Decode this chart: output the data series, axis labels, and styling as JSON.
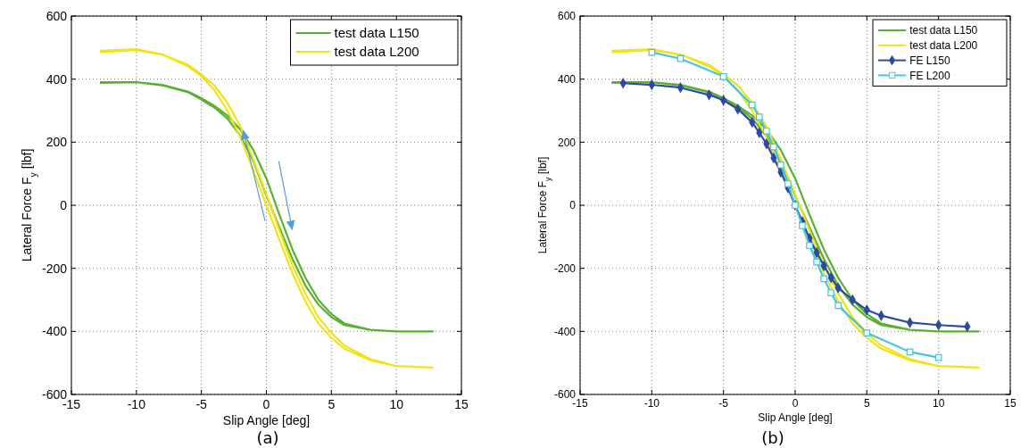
{
  "chart_data": [
    {
      "type": "line",
      "xlabel": "Slip Angle [deg]",
      "ylabel": "Lateral Force F$_{y}$ [lbf]",
      "xlim": [
        -15,
        15
      ],
      "ylim": [
        -600,
        600
      ],
      "xticks": [
        -15,
        -10,
        -5,
        0,
        5,
        10,
        15
      ],
      "yticks": [
        -600,
        -400,
        -200,
        0,
        200,
        400,
        600
      ],
      "grid": true,
      "legend": "top right",
      "annotations": [
        "(a)"
      ],
      "series": [
        {
          "name": "test data L150",
          "color": "#5ab034",
          "x": [
            -12.8,
            -10,
            -8,
            -6,
            -5,
            -4,
            -3,
            -2,
            -1,
            0,
            1,
            2,
            3,
            4,
            5,
            6,
            8,
            10,
            12.8,
            10,
            8,
            6,
            5,
            4,
            3,
            2,
            1,
            0,
            -1,
            -2,
            -3,
            -4,
            -5,
            -6,
            -8,
            -10,
            -12.8
          ],
          "values": [
            390,
            390,
            382,
            360,
            340,
            315,
            285,
            240,
            175,
            85,
            -30,
            -140,
            -230,
            -300,
            -345,
            -375,
            -395,
            -400,
            -400,
            -400,
            -395,
            -380,
            -355,
            -315,
            -255,
            -170,
            -70,
            30,
            140,
            220,
            275,
            310,
            335,
            358,
            380,
            390,
            388
          ]
        },
        {
          "name": "test data L200",
          "color": "#f0e31a",
          "x": [
            -12.8,
            -10,
            -8,
            -6,
            -5,
            -4,
            -3,
            -2,
            -1,
            0,
            1,
            2,
            3,
            4,
            5,
            6,
            8,
            10,
            12.8,
            10,
            8,
            6,
            5,
            4,
            3,
            2,
            1,
            0,
            -1,
            -2,
            -3,
            -4,
            -5,
            -6,
            -8,
            -10,
            -12.8
          ],
          "values": [
            490,
            495,
            478,
            445,
            415,
            380,
            325,
            250,
            145,
            35,
            -80,
            -190,
            -280,
            -355,
            -405,
            -445,
            -488,
            -510,
            -515,
            -510,
            -492,
            -455,
            -420,
            -375,
            -305,
            -215,
            -110,
            0,
            110,
            215,
            300,
            365,
            410,
            440,
            478,
            492,
            486
          ]
        }
      ]
    },
    {
      "type": "line",
      "xlabel": "Slip Angle [deg]",
      "ylabel": "Lateral Force F$_{y}$ [lbf]",
      "xlim": [
        -15,
        15
      ],
      "ylim": [
        -600,
        600
      ],
      "xticks": [
        -15,
        -10,
        -5,
        0,
        5,
        10,
        15
      ],
      "yticks": [
        -600,
        -400,
        -200,
        0,
        200,
        400,
        600
      ],
      "grid": true,
      "legend": "top right",
      "annotations": [
        "(b)"
      ],
      "series": [
        {
          "name": "test data L150",
          "color": "#5ab034",
          "x": [
            -12.8,
            -10,
            -8,
            -6,
            -5,
            -4,
            -3,
            -2,
            -1,
            0,
            1,
            2,
            3,
            4,
            5,
            6,
            8,
            10,
            12.8,
            10,
            8,
            6,
            5,
            4,
            3,
            2,
            1,
            0,
            -1,
            -2,
            -3,
            -4,
            -5,
            -6,
            -8,
            -10,
            -12.8
          ],
          "values": [
            390,
            390,
            382,
            360,
            340,
            315,
            285,
            240,
            175,
            85,
            -30,
            -140,
            -230,
            -300,
            -345,
            -375,
            -395,
            -400,
            -400,
            -400,
            -395,
            -380,
            -355,
            -315,
            -255,
            -170,
            -70,
            30,
            140,
            220,
            275,
            310,
            335,
            358,
            380,
            390,
            388
          ]
        },
        {
          "name": "test data L200",
          "color": "#f0e31a",
          "x": [
            -12.8,
            -10,
            -8,
            -6,
            -5,
            -4,
            -3,
            -2,
            -1,
            0,
            1,
            2,
            3,
            4,
            5,
            6,
            8,
            10,
            12.8,
            10,
            8,
            6,
            5,
            4,
            3,
            2,
            1,
            0,
            -1,
            -2,
            -3,
            -4,
            -5,
            -6,
            -8,
            -10,
            -12.8
          ],
          "values": [
            490,
            495,
            478,
            445,
            415,
            380,
            325,
            250,
            145,
            35,
            -80,
            -190,
            -280,
            -355,
            -405,
            -445,
            -488,
            -510,
            -515,
            -510,
            -492,
            -455,
            -420,
            -375,
            -305,
            -215,
            -110,
            0,
            110,
            215,
            300,
            365,
            410,
            440,
            478,
            492,
            486
          ]
        },
        {
          "name": "FE L150",
          "color": "#2e4aa0",
          "marker": "diamond",
          "x": [
            -12,
            -10,
            -8,
            -6,
            -5,
            -4,
            -3,
            -2.5,
            -2,
            -1.5,
            -1,
            -0.5,
            0,
            0.5,
            1,
            1.5,
            2,
            2.5,
            3,
            4,
            5,
            6,
            8,
            10,
            12
          ],
          "values": [
            387,
            382,
            373,
            350,
            333,
            305,
            263,
            230,
            195,
            150,
            105,
            55,
            0,
            -52,
            -105,
            -150,
            -192,
            -230,
            -262,
            -300,
            -332,
            -350,
            -372,
            -380,
            -385
          ]
        },
        {
          "name": "FE L200",
          "color": "#45c3df",
          "marker": "square",
          "x": [
            -10,
            -8,
            -5,
            -3,
            -2.5,
            -2,
            -1.5,
            -1,
            -0.5,
            0,
            0.5,
            1,
            1.5,
            2,
            2.5,
            3,
            5,
            8,
            10
          ],
          "values": [
            485,
            465,
            408,
            318,
            280,
            235,
            185,
            128,
            68,
            0,
            -65,
            -128,
            -180,
            -233,
            -278,
            -318,
            -405,
            -465,
            -483
          ]
        }
      ]
    }
  ]
}
